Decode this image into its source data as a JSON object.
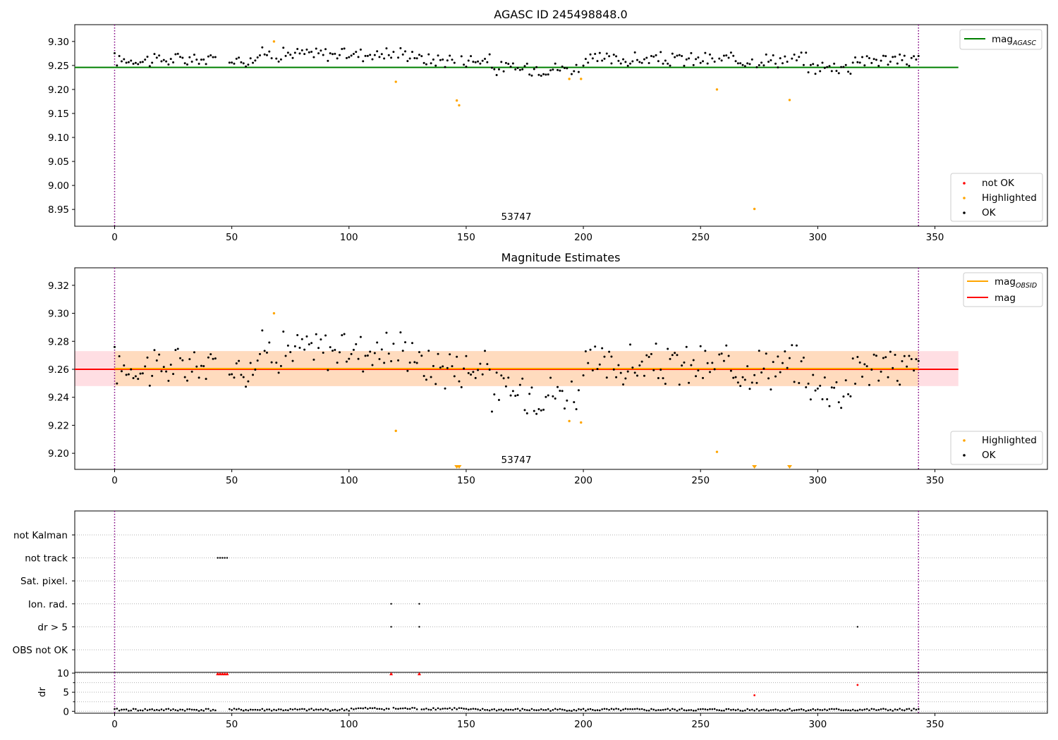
{
  "chart_data": [
    {
      "type": "scatter",
      "title": "AGASC ID 245498848.0",
      "xlim": [
        -17,
        398
      ],
      "ylim": [
        8.915,
        9.335
      ],
      "xticks": [
        0,
        50,
        100,
        150,
        200,
        250,
        300,
        350
      ],
      "yticks": [
        8.95,
        9.0,
        9.05,
        9.1,
        9.15,
        9.2,
        9.25,
        9.3
      ],
      "ytick_labels": [
        "8.95",
        "9.00",
        "9.05",
        "9.10",
        "9.15",
        "9.20",
        "9.25",
        "9.30"
      ],
      "vlines": [
        0,
        343
      ],
      "vline_color": "#800080",
      "hline": {
        "name": "mag_AGASC",
        "y": 9.246,
        "x0": -17,
        "x1": 360,
        "color": "#008000"
      },
      "annotation": {
        "text": "53747",
        "x": 171.5,
        "y": 8.93
      },
      "highlighted_points": [
        [
          68,
          9.3
        ],
        [
          120,
          9.216
        ],
        [
          146,
          9.177
        ],
        [
          147,
          9.167
        ],
        [
          194,
          9.222
        ],
        [
          199,
          9.222
        ],
        [
          257,
          9.2
        ],
        [
          273,
          8.951
        ],
        [
          288,
          9.178
        ]
      ],
      "ok_band": {
        "center": 9.262,
        "amplitude": 0.012,
        "noise": 0.008
      },
      "legend_line": {
        "base": "mag",
        "sub": "AGASC",
        "color": "#008000"
      },
      "legend_points": [
        {
          "name": "not OK",
          "color": "#ff0000"
        },
        {
          "name": "Highlighted",
          "color": "#ffa500"
        },
        {
          "name": "OK",
          "color": "#000000"
        }
      ]
    },
    {
      "type": "scatter",
      "title": "Magnitude Estimates",
      "xlim": [
        -17,
        398
      ],
      "ylim": [
        9.1885,
        9.3325
      ],
      "xticks": [
        0,
        50,
        100,
        150,
        200,
        250,
        300,
        350
      ],
      "yticks": [
        9.2,
        9.22,
        9.24,
        9.26,
        9.28,
        9.3,
        9.32
      ],
      "ytick_labels": [
        "9.20",
        "9.22",
        "9.24",
        "9.26",
        "9.28",
        "9.30",
        "9.32"
      ],
      "vlines": [
        0,
        343
      ],
      "vline_color": "#800080",
      "mag_line": {
        "name": "mag",
        "y": 9.26,
        "x0": -17,
        "x1": 360,
        "color": "#ff0000"
      },
      "mag_band": {
        "y0": 9.248,
        "y1": 9.273,
        "x0": -17,
        "x1": 360,
        "color": "#ffb6c1"
      },
      "obsid_line": {
        "name": "mag_OBSID",
        "y": 9.2605,
        "x0": 0,
        "x1": 343,
        "color": "#ffa500"
      },
      "obsid_band": {
        "y0": 9.248,
        "y1": 9.273,
        "x0": 0,
        "x1": 343,
        "color": "#ffdab9"
      },
      "annotation": {
        "text": "53747",
        "x": 171.5,
        "y": 9.1925
      },
      "highlighted_points": [
        [
          68,
          9.3
        ],
        [
          120,
          9.216
        ],
        [
          194,
          9.223
        ],
        [
          199,
          9.222
        ],
        [
          257,
          9.201
        ]
      ],
      "offscale_markers": [
        146,
        147,
        273,
        288
      ],
      "legend_lines": [
        {
          "base": "mag",
          "sub": "OBSID",
          "color": "#ffa500"
        },
        {
          "base": "mag",
          "sub": "",
          "color": "#ff0000"
        }
      ],
      "legend_points": [
        {
          "name": "Highlighted",
          "color": "#ffa500"
        },
        {
          "name": "OK",
          "color": "#000000"
        }
      ]
    },
    {
      "type": "scatter",
      "title": "",
      "xlim": [
        -17,
        398
      ],
      "category_labels": [
        "not Kalman",
        "not track",
        "Sat. pixel.",
        "Ion. rad.",
        "dr > 5",
        "OBS not OK"
      ],
      "flags": [
        {
          "label": "not track",
          "x": [
            44,
            45,
            46,
            47,
            48
          ]
        },
        {
          "label": "Ion. rad.",
          "x": [
            118,
            130
          ]
        },
        {
          "label": "dr > 5",
          "x": [
            118,
            130,
            317
          ]
        }
      ],
      "vlines": [
        0,
        343
      ],
      "vline_color": "#800080"
    },
    {
      "type": "scatter",
      "title": "",
      "xlim": [
        -17,
        398
      ],
      "ylim": [
        -0.5,
        10.2
      ],
      "ylabel": "dr",
      "xticks": [
        0,
        50,
        100,
        150,
        200,
        250,
        300,
        350
      ],
      "yticks": [
        0,
        5,
        10
      ],
      "ytick_labels": [
        "0",
        "5",
        "10"
      ],
      "minor_yticks": [
        2.5,
        7.5
      ],
      "vlines": [
        0,
        343
      ],
      "vline_color": "#800080",
      "red_markers": [
        [
          44,
          9.8
        ],
        [
          45,
          9.8
        ],
        [
          46,
          9.8
        ],
        [
          47,
          9.8
        ],
        [
          48,
          9.8
        ],
        [
          118,
          9.8
        ],
        [
          130,
          9.8
        ]
      ],
      "red_dots": [
        [
          273,
          4.2
        ],
        [
          317,
          6.9
        ]
      ],
      "baseline_dr": {
        "mean": 0.4,
        "spread": 0.3
      }
    }
  ]
}
